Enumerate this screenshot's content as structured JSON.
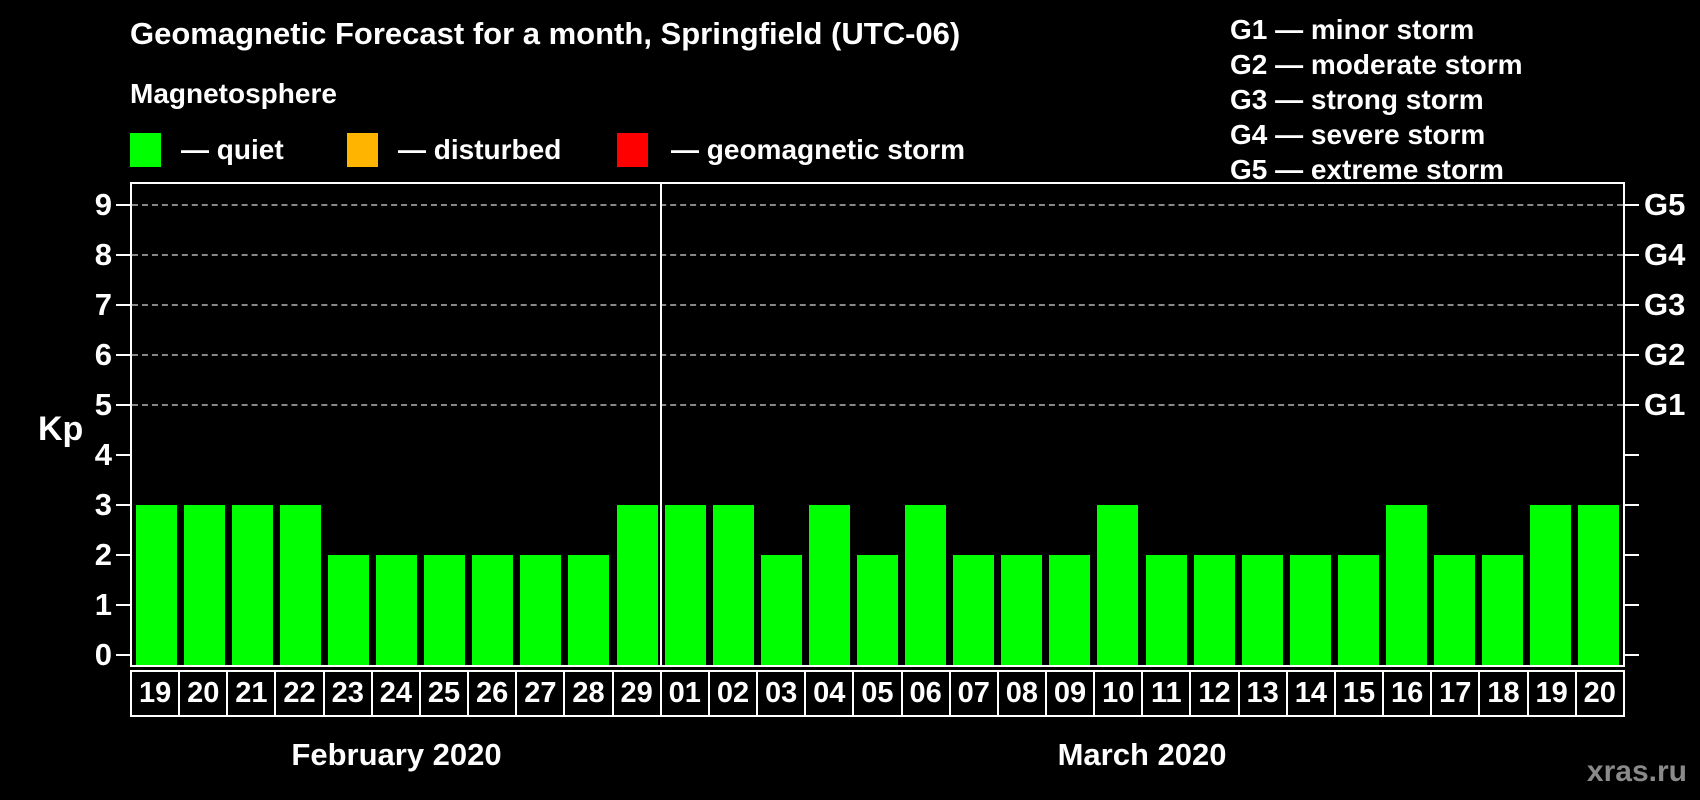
{
  "title": "Geomagnetic Forecast for a month, Springfield (UTC-06)",
  "magnetosphere_heading": "Magnetosphere",
  "legend_items": [
    {
      "name": "quiet",
      "label": "— quiet",
      "color": "#00ff00"
    },
    {
      "name": "disturbed",
      "label": "— disturbed",
      "color": "#ffb400"
    },
    {
      "name": "storm",
      "label": "— geomagnetic storm",
      "color": "#ff0000"
    }
  ],
  "g_scale_legend": [
    "G1 — minor storm",
    "G2 — moderate storm",
    "G3 — strong storm",
    "G4 — severe storm",
    "G5 — extreme storm"
  ],
  "watermark": "xras.ru",
  "chart_data": {
    "type": "bar",
    "title": "Geomagnetic Forecast for a month, Springfield (UTC-06)",
    "ylabel": "Kp",
    "ylim": [
      0,
      9
    ],
    "yticks": [
      0,
      1,
      2,
      3,
      4,
      5,
      6,
      7,
      8,
      9
    ],
    "grid_levels_kp": [
      5,
      6,
      7,
      8,
      9
    ],
    "grid_style": "dashed",
    "grid_color": "#888888",
    "right_axis": [
      {
        "kp": 5,
        "label": "G1"
      },
      {
        "kp": 6,
        "label": "G2"
      },
      {
        "kp": 7,
        "label": "G3"
      },
      {
        "kp": 8,
        "label": "G4"
      },
      {
        "kp": 9,
        "label": "G5"
      }
    ],
    "categories": [
      "19",
      "20",
      "21",
      "22",
      "23",
      "24",
      "25",
      "26",
      "27",
      "28",
      "29",
      "01",
      "02",
      "03",
      "04",
      "05",
      "06",
      "07",
      "08",
      "09",
      "10",
      "11",
      "12",
      "13",
      "14",
      "15",
      "16",
      "17",
      "18",
      "19",
      "20"
    ],
    "values": [
      3,
      3,
      3,
      3,
      2,
      2,
      2,
      2,
      2,
      2,
      3,
      3,
      3,
      2,
      3,
      2,
      3,
      2,
      2,
      2,
      3,
      2,
      2,
      2,
      2,
      2,
      3,
      2,
      2,
      3,
      3
    ],
    "color_rule": {
      "quiet_below_kp": 4,
      "storm_from_kp": 5
    },
    "months": [
      {
        "label": "February 2020",
        "days": 11
      },
      {
        "label": "March 2020",
        "days": 20
      }
    ],
    "legend_position": "top-left",
    "bar_color_default": "#00ff00"
  }
}
